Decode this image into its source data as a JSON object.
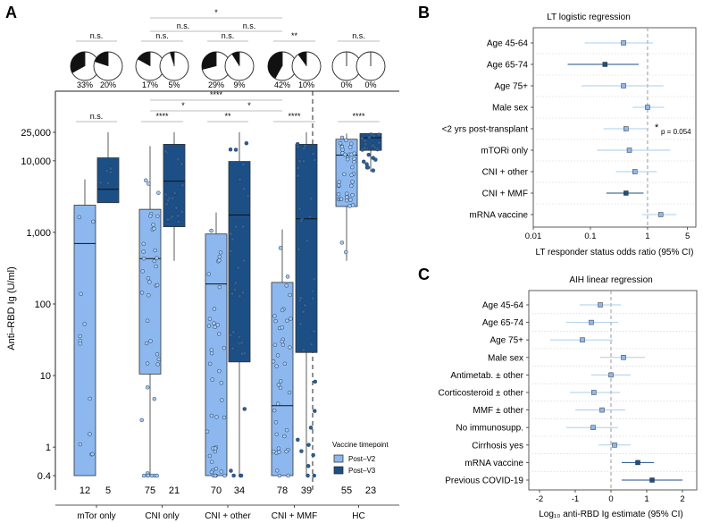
{
  "panels": {
    "A": "A",
    "B": "B",
    "C": "C"
  },
  "colors": {
    "v2": "#8db8ef",
    "v3": "#1c4f86",
    "point_v2": "#a6c9f2",
    "point_v3": "#2e5f99",
    "ci_b": "#a9cdee",
    "ci_c": "#a9cdee",
    "grey": "#bdbdbd"
  },
  "chart_data": [
    {
      "type": "box",
      "panel": "A",
      "ylabel": "Anti–RBD Ig (U/ml)",
      "yscale": "log",
      "ylim": [
        0.4,
        25000
      ],
      "yticks": [
        0.4,
        1,
        10,
        100,
        1000,
        10000,
        25000
      ],
      "ytick_labels": [
        "0.4",
        "1",
        "10",
        "100",
        "1,000",
        "10,000",
        "25,000"
      ],
      "groups": [
        {
          "label": "mTor only",
          "n": [
            "12",
            "5"
          ],
          "pies": [
            33,
            20
          ],
          "pie_labels": [
            "33%",
            "20%"
          ],
          "sig": "n.s.",
          "boxes": [
            [
              0.4,
              0.4,
              700,
              2400,
              5500
            ],
            [
              2600,
              2600,
              4000,
              11000,
              25000
            ]
          ]
        },
        {
          "label": "CNI only",
          "n": [
            "75",
            "21"
          ],
          "pies": [
            17,
            5
          ],
          "pie_labels": [
            "17%",
            "5%"
          ],
          "sig": "****",
          "boxes": [
            [
              0.4,
              10.5,
              430,
              2100,
              16000
            ],
            [
              400,
              1200,
              5200,
              17000,
              25000
            ]
          ]
        },
        {
          "label": "CNI + other",
          "n": [
            "70",
            "34"
          ],
          "pies": [
            29,
            9
          ],
          "pie_labels": [
            "29%",
            "9%"
          ],
          "sig": "**",
          "boxes": [
            [
              0.4,
              0.4,
              190,
              950,
              1900
            ],
            [
              0.4,
              15.5,
              1750,
              9800,
              25000
            ]
          ]
        },
        {
          "label": "CNI + MMF",
          "n": [
            "78",
            "39"
          ],
          "pies": [
            42,
            10
          ],
          "pie_labels": [
            "42%",
            "10%"
          ],
          "sig": "****",
          "boxes": [
            [
              0.4,
              0.4,
              3.8,
              200,
              1100
            ],
            [
              0.4,
              21,
              1550,
              17000,
              25000
            ]
          ]
        },
        {
          "label": "HC",
          "n": [
            "55",
            "23"
          ],
          "pies": [
            0,
            0
          ],
          "pie_labels": [
            "0%",
            "0%"
          ],
          "sig": "****",
          "boxes": [
            [
              400,
              2300,
              12000,
              20000,
              24000
            ],
            [
              7000,
              14000,
              21000,
              24000,
              25000
            ]
          ]
        }
      ],
      "pie_sig": {
        "pairs": [
          "n.s.",
          "n.s.",
          "n.s.",
          "**",
          "n.s."
        ],
        "star_top": "*",
        "ns_left": "n.s.",
        "ns_right": "n.s."
      },
      "box_sig": {
        "top": "****",
        "left": "*",
        "right": "*"
      },
      "legend": {
        "title": "Vaccine timepoint",
        "items": [
          "Post–V2",
          "Post–V3"
        ]
      }
    },
    {
      "type": "forest",
      "panel": "B",
      "title": "LT logistic regression",
      "xlabel": "LT responder status odds ratio (95% CI)",
      "xscale": "log",
      "xlim": [
        0.01,
        7
      ],
      "xticks": [
        0.01,
        0.1,
        1,
        5
      ],
      "xtick_labels": [
        "0.01",
        "0.1",
        "1",
        "5"
      ],
      "annotation": "p = 0.054",
      "annotation_star": "*",
      "rows": [
        {
          "label": "Age 45-64",
          "est": 0.38,
          "lo": 0.08,
          "hi": 1.25,
          "sig": false
        },
        {
          "label": "Age 65-74",
          "est": 0.18,
          "lo": 0.04,
          "hi": 0.7,
          "sig": true
        },
        {
          "label": "Age 75+",
          "est": 0.38,
          "lo": 0.07,
          "hi": 1.9,
          "sig": false
        },
        {
          "label": "Male sex",
          "est": 1.0,
          "lo": 0.55,
          "hi": 1.95,
          "sig": false
        },
        {
          "label": "<2 yrs post-transplant",
          "est": 0.42,
          "lo": 0.17,
          "hi": 1.05,
          "sig": false
        },
        {
          "label": "mTORi only",
          "est": 0.48,
          "lo": 0.13,
          "hi": 2.5,
          "sig": false
        },
        {
          "label": "CNI + other",
          "est": 0.6,
          "lo": 0.28,
          "hi": 1.45,
          "sig": false
        },
        {
          "label": "CNI + MMF",
          "est": 0.42,
          "lo": 0.19,
          "hi": 0.85,
          "sig": true
        },
        {
          "label": "mRNA vaccine",
          "est": 1.7,
          "lo": 0.8,
          "hi": 3.2,
          "sig": false
        }
      ]
    },
    {
      "type": "forest",
      "panel": "C",
      "title": "AIH linear regression",
      "xlabel": "Log₁₀ anti-RBD Ig estimate (95% CI)",
      "xlim": [
        -2.3,
        2.4
      ],
      "xticks": [
        -2,
        -1,
        0,
        1,
        2
      ],
      "xtick_labels": [
        "-2",
        "-1",
        "0",
        "1",
        "2"
      ],
      "rows": [
        {
          "label": "Age 45-64",
          "est": -0.3,
          "lo": -0.88,
          "hi": 0.28,
          "sig": false
        },
        {
          "label": "Age 65-74",
          "est": -0.55,
          "lo": -1.25,
          "hi": 0.2,
          "sig": false
        },
        {
          "label": "Age 75+",
          "est": -0.8,
          "lo": -1.7,
          "hi": 0.05,
          "sig": false
        },
        {
          "label": "Male sex",
          "est": 0.35,
          "lo": -0.3,
          "hi": 0.95,
          "sig": false
        },
        {
          "label": "Antimetab. ± other",
          "est": 0.0,
          "lo": -0.55,
          "hi": 0.55,
          "sig": false
        },
        {
          "label": "Corticosteroid ± other",
          "est": -0.48,
          "lo": -1.15,
          "hi": 0.25,
          "sig": false
        },
        {
          "label": "MMF ± other",
          "est": -0.25,
          "lo": -1.0,
          "hi": 0.4,
          "sig": false
        },
        {
          "label": "No immunosupp.",
          "est": -0.5,
          "lo": -1.25,
          "hi": 0.2,
          "sig": false
        },
        {
          "label": "Cirrhosis yes",
          "est": 0.1,
          "lo": -0.35,
          "hi": 0.55,
          "sig": false
        },
        {
          "label": "mRNA vaccine",
          "est": 0.75,
          "lo": 0.3,
          "hi": 1.2,
          "sig": true
        },
        {
          "label": "Previous COVID-19",
          "est": 1.15,
          "lo": 0.3,
          "hi": 2.0,
          "sig": true
        }
      ]
    }
  ]
}
